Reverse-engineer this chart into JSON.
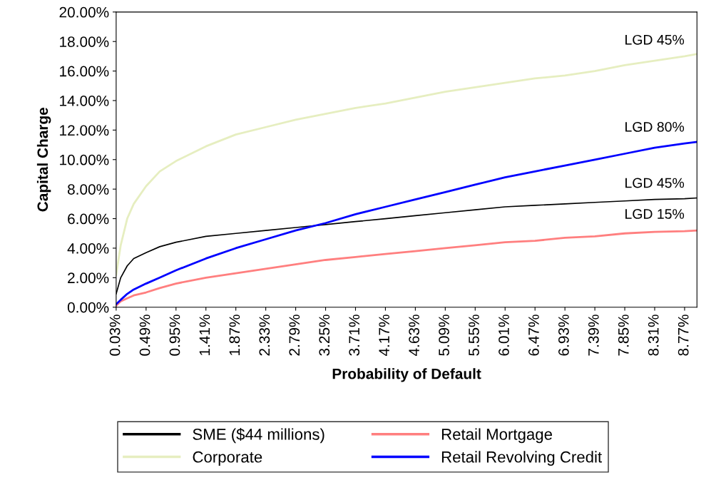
{
  "chart_data": {
    "type": "line",
    "xlabel": "Probability of Default",
    "ylabel": "Capital Charge",
    "x": [
      0.03,
      0.1,
      0.2,
      0.3,
      0.49,
      0.7,
      0.95,
      1.41,
      1.87,
      2.33,
      2.79,
      3.25,
      3.71,
      4.17,
      4.63,
      5.09,
      5.55,
      6.01,
      6.47,
      6.93,
      7.39,
      7.85,
      8.31,
      8.77,
      8.96
    ],
    "series": [
      {
        "name": "SME ($44 millions)",
        "color": "#000000",
        "values": [
          0.9,
          2.0,
          2.8,
          3.3,
          3.7,
          4.1,
          4.4,
          4.8,
          5.0,
          5.2,
          5.4,
          5.6,
          5.8,
          6.0,
          6.2,
          6.4,
          6.6,
          6.8,
          6.9,
          7.0,
          7.1,
          7.2,
          7.3,
          7.35,
          7.4
        ]
      },
      {
        "name": "Corporate",
        "color": "#e6eec0",
        "values": [
          2.2,
          4.2,
          6.0,
          7.0,
          8.2,
          9.2,
          9.9,
          10.9,
          11.7,
          12.2,
          12.7,
          13.1,
          13.5,
          13.8,
          14.2,
          14.6,
          14.9,
          15.2,
          15.5,
          15.7,
          16.0,
          16.4,
          16.7,
          17.0,
          17.15
        ]
      },
      {
        "name": "Retail Mortgage",
        "color": "#ff7f7f",
        "values": [
          0.1,
          0.4,
          0.6,
          0.8,
          1.0,
          1.3,
          1.6,
          2.0,
          2.3,
          2.6,
          2.9,
          3.2,
          3.4,
          3.6,
          3.8,
          4.0,
          4.2,
          4.4,
          4.5,
          4.7,
          4.8,
          5.0,
          5.1,
          5.15,
          5.2
        ]
      },
      {
        "name": "Retail Revolving Credit",
        "color": "#0000ff",
        "values": [
          0.2,
          0.5,
          0.9,
          1.2,
          1.6,
          2.0,
          2.5,
          3.3,
          4.0,
          4.6,
          5.2,
          5.7,
          6.3,
          6.8,
          7.3,
          7.8,
          8.3,
          8.8,
          9.2,
          9.6,
          10.0,
          10.4,
          10.8,
          11.1,
          11.2
        ]
      }
    ],
    "xlim": [
      0.03,
      8.96
    ],
    "ylim": [
      0,
      20
    ],
    "xticks": [
      {
        "value": 0.03,
        "label": "0.03%"
      },
      {
        "value": 0.49,
        "label": "0.49%"
      },
      {
        "value": 0.95,
        "label": "0.95%"
      },
      {
        "value": 1.41,
        "label": "1.41%"
      },
      {
        "value": 1.87,
        "label": "1.87%"
      },
      {
        "value": 2.33,
        "label": "2.33%"
      },
      {
        "value": 2.79,
        "label": "2.79%"
      },
      {
        "value": 3.25,
        "label": "3.25%"
      },
      {
        "value": 3.71,
        "label": "3.71%"
      },
      {
        "value": 4.17,
        "label": "4.17%"
      },
      {
        "value": 4.63,
        "label": "4.63%"
      },
      {
        "value": 5.09,
        "label": "5.09%"
      },
      {
        "value": 5.55,
        "label": "5.55%"
      },
      {
        "value": 6.01,
        "label": "6.01%"
      },
      {
        "value": 6.47,
        "label": "6.47%"
      },
      {
        "value": 6.93,
        "label": "6.93%"
      },
      {
        "value": 7.39,
        "label": "7.39%"
      },
      {
        "value": 7.85,
        "label": "7.85%"
      },
      {
        "value": 8.31,
        "label": "8.31%"
      },
      {
        "value": 8.77,
        "label": "8.77%"
      }
    ],
    "yticks": [
      {
        "value": 0,
        "label": "0.00%"
      },
      {
        "value": 2,
        "label": "2.00%"
      },
      {
        "value": 4,
        "label": "4.00%"
      },
      {
        "value": 6,
        "label": "6.00%"
      },
      {
        "value": 8,
        "label": "8.00%"
      },
      {
        "value": 10,
        "label": "10.00%"
      },
      {
        "value": 12,
        "label": "12.00%"
      },
      {
        "value": 14,
        "label": "14.00%"
      },
      {
        "value": 16,
        "label": "16.00%"
      },
      {
        "value": 18,
        "label": "18.00%"
      },
      {
        "value": 20,
        "label": "20.00%"
      }
    ],
    "annotations": [
      "LGD 45%",
      "LGD 80%",
      "LGD 45%",
      "LGD 15%"
    ],
    "grid": false,
    "legend": "bottom",
    "marker": "none",
    "line_style": "solid"
  }
}
